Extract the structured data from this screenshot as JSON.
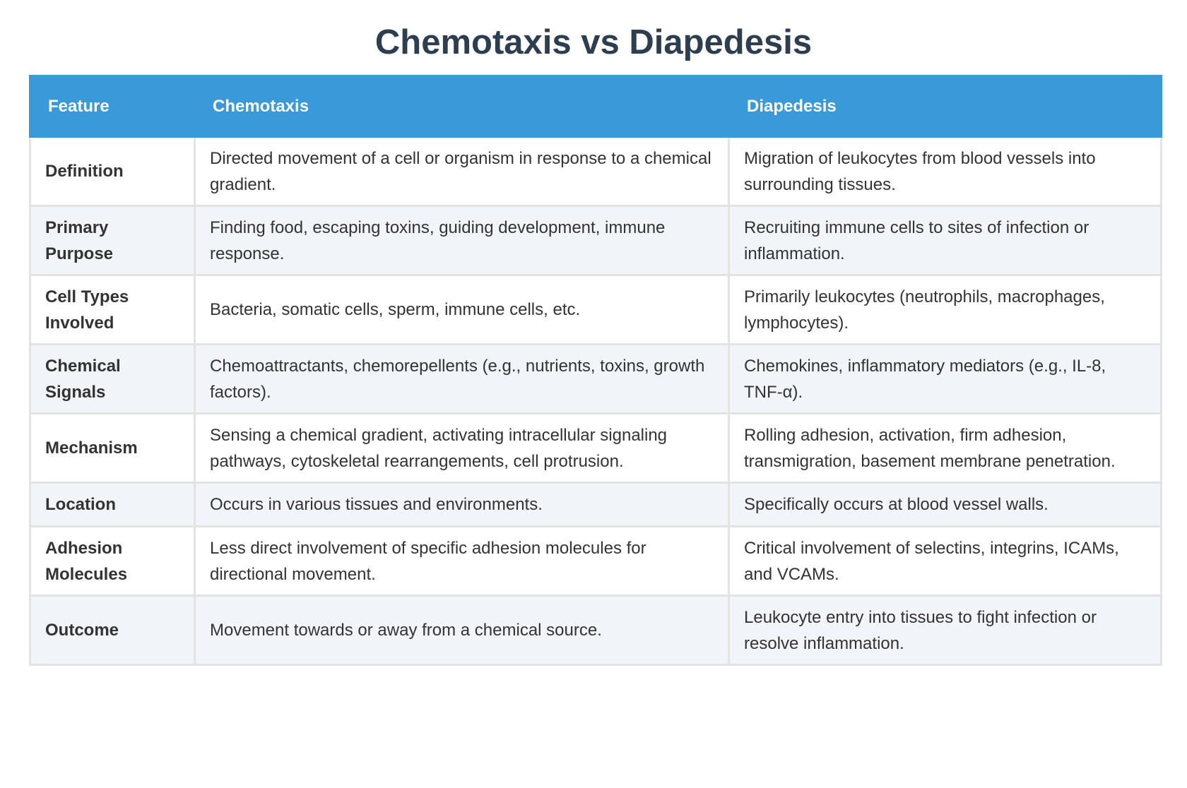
{
  "title": "Chemotaxis vs Diapedesis",
  "headers": [
    "Feature",
    "Chemotaxis",
    "Diapedesis"
  ],
  "rows": [
    {
      "feature": "Definition",
      "chemotaxis": "Directed movement of a cell or organism in response to a chemical gradient.",
      "diapedesis": "Migration of leukocytes from blood vessels into surrounding tissues."
    },
    {
      "feature": "Primary Purpose",
      "chemotaxis": "Finding food, escaping toxins, guiding development, immune response.",
      "diapedesis": "Recruiting immune cells to sites of infection or inflammation."
    },
    {
      "feature": "Cell Types Involved",
      "chemotaxis": "Bacteria, somatic cells, sperm, immune cells, etc.",
      "diapedesis": "Primarily leukocytes (neutrophils, macrophages, lymphocytes)."
    },
    {
      "feature": "Chemical Signals",
      "chemotaxis": "Chemoattractants, chemorepellents (e.g., nutrients, toxins, growth factors).",
      "diapedesis": "Chemokines, inflammatory mediators (e.g., IL-8, TNF-α)."
    },
    {
      "feature": "Mechanism",
      "chemotaxis": "Sensing a chemical gradient, activating intracellular signaling pathways, cytoskeletal rearrangements, cell protrusion.",
      "diapedesis": "Rolling adhesion, activation, firm adhesion, transmigration, basement membrane penetration."
    },
    {
      "feature": "Location",
      "chemotaxis": "Occurs in various tissues and environments.",
      "diapedesis": "Specifically occurs at blood vessel walls."
    },
    {
      "feature": "Adhesion Molecules",
      "chemotaxis": "Less direct involvement of specific adhesion molecules for directional movement.",
      "diapedesis": "Critical involvement of selectins, integrins, ICAMs, and VCAMs."
    },
    {
      "feature": "Outcome",
      "chemotaxis": "Movement towards or away from a chemical source.",
      "diapedesis": "Leukocyte entry into tissues to fight infection or resolve inflammation."
    }
  ],
  "colors": {
    "header_bg": "#3a9ad9",
    "title": "#2c3e50",
    "stripe": "#f1f4f8"
  }
}
